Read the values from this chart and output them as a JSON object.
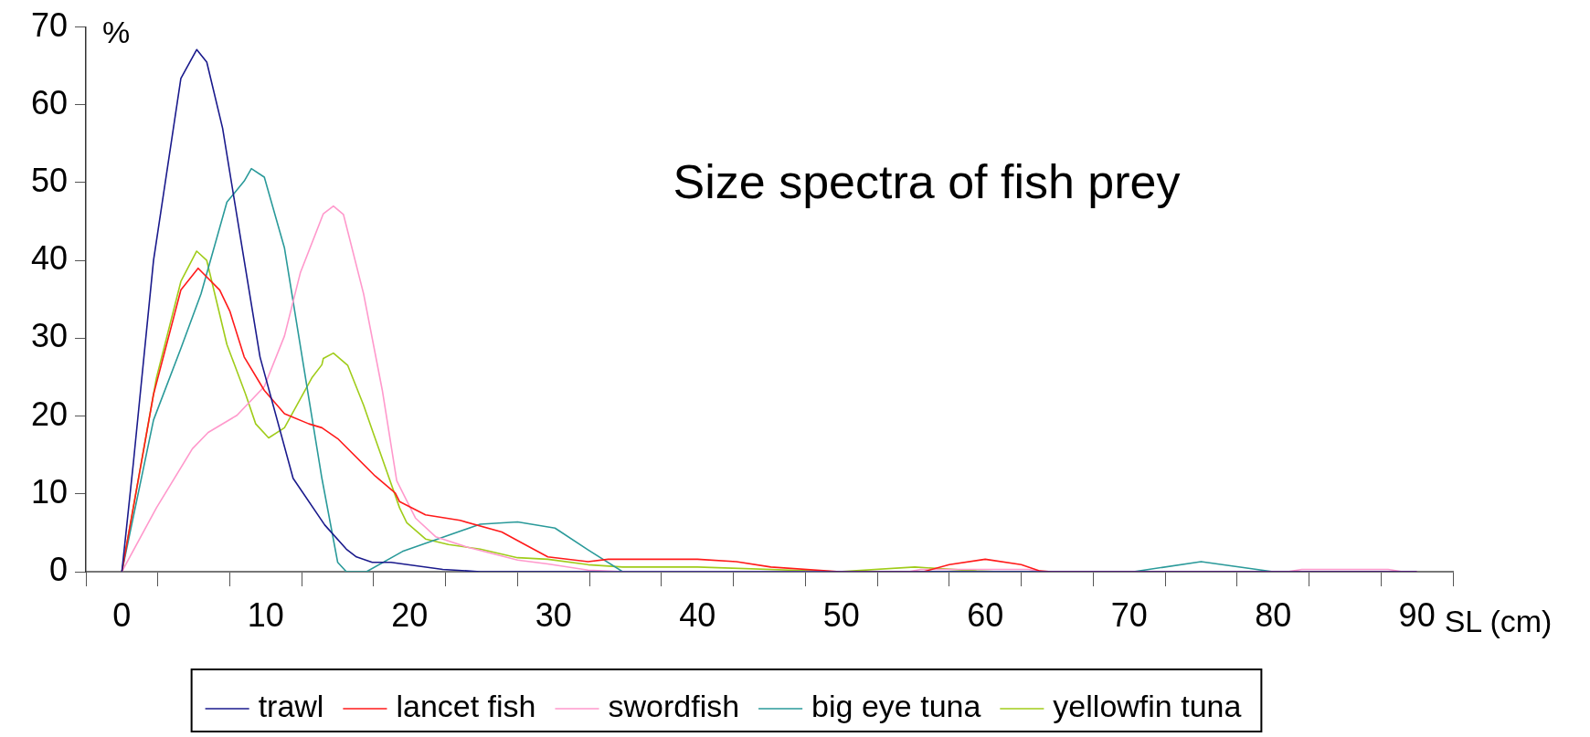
{
  "chart_data": {
    "type": "line",
    "title": "Size spectra of fish prey",
    "xlabel": "SL (cm)",
    "ylabel": "%",
    "xlim": [
      -2.5,
      92.5
    ],
    "xticks": [
      {
        "value": -2.5,
        "label": null
      },
      0,
      {
        "value": 2.5,
        "label": null
      },
      {
        "value": 7.5,
        "label": null
      },
      10,
      {
        "value": 12.5,
        "label": null
      },
      {
        "value": 17.5,
        "label": null
      },
      20,
      {
        "value": 22.5,
        "label": null
      },
      {
        "value": 27.5,
        "label": null
      },
      30,
      {
        "value": 32.5,
        "label": null
      },
      {
        "value": 37.5,
        "label": null
      },
      40,
      {
        "value": 42.5,
        "label": null
      },
      {
        "value": 47.5,
        "label": null
      },
      50,
      {
        "value": 52.5,
        "label": null
      },
      {
        "value": 57.5,
        "label": null
      },
      60,
      {
        "value": 62.5,
        "label": null
      },
      {
        "value": 67.5,
        "label": null
      },
      70,
      {
        "value": 72.5,
        "label": null
      },
      {
        "value": 77.5,
        "label": null
      },
      80,
      {
        "value": 82.5,
        "label": null
      },
      {
        "value": 87.5,
        "label": null
      },
      90,
      {
        "value": 92.5,
        "label": null
      }
    ],
    "ylim": [
      0,
      70
    ],
    "yticks": [
      0,
      10,
      20,
      30,
      40,
      50,
      60,
      70
    ],
    "grid": false,
    "legend": "bottom",
    "marker": "none",
    "line_style": "solid",
    "series": [
      {
        "name": "trawl",
        "color": "#1a1a8c",
        "x": [
          0,
          0.8,
          2.2,
          4.1,
          5.2,
          5.9,
          7,
          8.5,
          9.6,
          11.9,
          14.1,
          15.6,
          16.3,
          17.4,
          18.7,
          22.3,
          24.9,
          90
        ],
        "values": [
          0,
          14,
          40,
          63.4,
          67.1,
          65.5,
          57,
          40,
          27.6,
          12,
          6,
          2.9,
          1.9,
          1.2,
          1.2,
          0.3,
          0,
          0
        ]
      },
      {
        "name": "lancet fish",
        "color": "#ff1a1a",
        "x": [
          0,
          2.2,
          4.1,
          5.3,
          6.8,
          7.5,
          8.5,
          9.9,
          11.3,
          13,
          13.9,
          15,
          17.6,
          19,
          19.3,
          21.1,
          23.5,
          26.4,
          27.8,
          29.6,
          32.4,
          33.8,
          40,
          42.7,
          45.1,
          49.9,
          55.7,
          57.5,
          60,
          62.5,
          63.8,
          64.6,
          90
        ],
        "values": [
          0,
          22.8,
          36.2,
          39,
          36.2,
          33.5,
          27.6,
          23.3,
          20.3,
          19,
          18.5,
          17.1,
          12.3,
          10.1,
          9,
          7.3,
          6.6,
          5.1,
          3.7,
          1.9,
          1.3,
          1.6,
          1.6,
          1.3,
          0.6,
          0,
          0,
          0.9,
          1.6,
          0.9,
          0.1,
          0,
          0
        ]
      },
      {
        "name": "swordfish",
        "color": "#ff99cc",
        "x": [
          0,
          2.4,
          4.9,
          6,
          8,
          9.9,
          11.3,
          12.4,
          14,
          14.7,
          15.4,
          16.8,
          18.1,
          19.1,
          20.4,
          21.8,
          24.1,
          27.5,
          29.6,
          32.4,
          34.8,
          54.7,
          55.5,
          63,
          64,
          81,
          82,
          88,
          89,
          90
        ],
        "values": [
          0,
          8.2,
          15.8,
          17.9,
          20.1,
          23.8,
          30.3,
          38.4,
          46,
          47,
          45.9,
          35.7,
          23.3,
          11.7,
          6.9,
          4.5,
          3.1,
          1.5,
          1,
          0.2,
          0,
          0,
          0.3,
          0.3,
          0,
          0,
          0.3,
          0.3,
          0,
          0
        ]
      },
      {
        "name": "big eye tuna",
        "color": "#2a9a9a",
        "x": [
          0,
          2.2,
          4.1,
          5.5,
          7.3,
          8.5,
          9,
          9.9,
          11.3,
          13,
          13.9,
          15,
          15.6,
          17,
          19.5,
          22.4,
          24.9,
          27.5,
          30.1,
          32.4,
          34.8,
          70.3,
          75,
          80,
          90
        ],
        "values": [
          0,
          19.5,
          28.7,
          35.7,
          47.5,
          50.2,
          51.8,
          50.7,
          41.6,
          22.2,
          12,
          1.2,
          0,
          0,
          2.6,
          4.5,
          6.1,
          6.4,
          5.6,
          2.8,
          0,
          0,
          1.3,
          0,
          0
        ]
      },
      {
        "name": "yellowfin tuna",
        "color": "#a0cc1a",
        "x": [
          0,
          2.4,
          4.1,
          5.2,
          5.9,
          7.3,
          8.6,
          9.3,
          10.2,
          11.3,
          13.2,
          13.9,
          14,
          14.7,
          15.7,
          16.8,
          17.4,
          19.3,
          19.8,
          21.1,
          22.7,
          24.9,
          27.5,
          29.6,
          32.4,
          34.8,
          40,
          49.8,
          55.1,
          59.4,
          61,
          90
        ],
        "values": [
          0,
          24.9,
          37.3,
          41.2,
          40,
          29.2,
          22.8,
          19,
          17.2,
          18.5,
          24.9,
          26.6,
          27.4,
          28.1,
          26.5,
          21.4,
          18.2,
          8.2,
          6.3,
          4.2,
          3.5,
          2.9,
          1.8,
          1.6,
          0.9,
          0.6,
          0.6,
          0,
          0.6,
          0.1,
          0,
          0
        ]
      }
    ]
  }
}
